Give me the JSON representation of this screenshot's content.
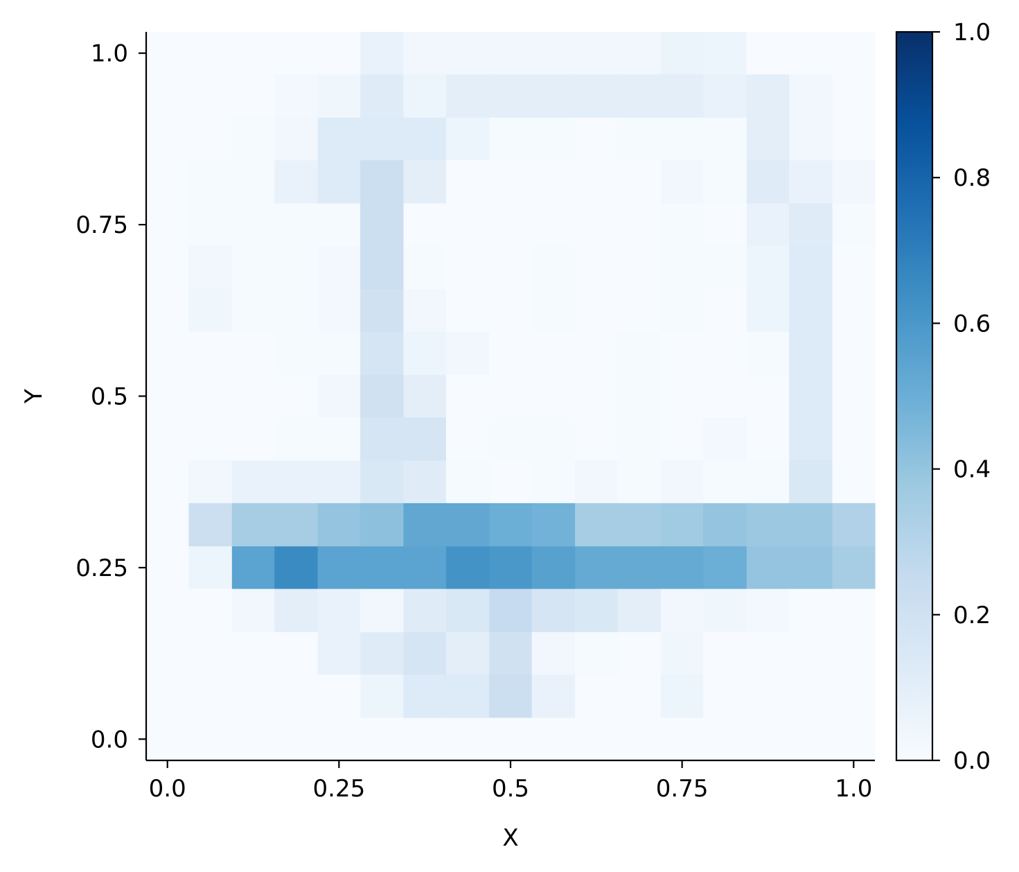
{
  "chart_data": {
    "type": "heatmap",
    "title": "",
    "xlabel": "X",
    "ylabel": "Y",
    "xlim": [
      -0.031,
      1.031
    ],
    "ylim": [
      -0.031,
      1.031
    ],
    "grid": false,
    "colormap": "Blues",
    "colormap_stops": [
      "#f7fbff",
      "#deebf7",
      "#c6dbef",
      "#9ecae1",
      "#6baed6",
      "#4292c6",
      "#2171b5",
      "#08519c",
      "#08306b"
    ],
    "x_ticks": [
      0.0,
      0.25,
      0.5,
      0.75,
      1.0
    ],
    "x_tick_labels": [
      "0.0",
      "0.25",
      "0.5",
      "0.75",
      "1.0"
    ],
    "y_ticks": [
      0.0,
      0.25,
      0.5,
      0.75,
      1.0
    ],
    "y_tick_labels": [
      "0.0",
      "0.25",
      "0.5",
      "0.75",
      "1.0"
    ],
    "x_edges": [
      -0.031,
      0.031,
      0.094,
      0.156,
      0.219,
      0.281,
      0.344,
      0.406,
      0.469,
      0.531,
      0.594,
      0.656,
      0.719,
      0.781,
      0.844,
      0.906,
      0.969,
      1.031
    ],
    "y_edges": [
      -0.031,
      0.031,
      0.094,
      0.156,
      0.219,
      0.281,
      0.344,
      0.406,
      0.469,
      0.531,
      0.594,
      0.656,
      0.719,
      0.781,
      0.844,
      0.906,
      0.969,
      1.031
    ],
    "values_rows_from_top": [
      [
        0.0,
        0.0,
        0.0,
        0.0,
        0.0,
        0.07,
        0.03,
        0.03,
        0.03,
        0.03,
        0.03,
        0.03,
        0.06,
        0.05,
        0.0,
        0.0,
        0.0
      ],
      [
        0.0,
        0.0,
        0.0,
        0.02,
        0.04,
        0.12,
        0.05,
        0.1,
        0.1,
        0.1,
        0.1,
        0.1,
        0.1,
        0.07,
        0.1,
        0.03,
        0.0
      ],
      [
        0.0,
        0.0,
        0.01,
        0.03,
        0.13,
        0.13,
        0.13,
        0.05,
        0.01,
        0.01,
        0.0,
        0.01,
        0.01,
        0.01,
        0.1,
        0.03,
        0.0
      ],
      [
        0.0,
        0.01,
        0.01,
        0.07,
        0.13,
        0.22,
        0.1,
        0.0,
        0.0,
        0.0,
        0.0,
        0.0,
        0.03,
        0.01,
        0.12,
        0.07,
        0.03
      ],
      [
        0.0,
        0.01,
        0.01,
        0.01,
        0.01,
        0.22,
        0.0,
        0.0,
        0.0,
        0.0,
        0.0,
        0.0,
        0.01,
        0.0,
        0.07,
        0.12,
        0.01
      ],
      [
        0.0,
        0.03,
        0.01,
        0.01,
        0.02,
        0.22,
        0.01,
        0.0,
        0.0,
        0.01,
        0.0,
        0.0,
        0.01,
        0.01,
        0.05,
        0.13,
        0.0
      ],
      [
        0.0,
        0.04,
        0.01,
        0.01,
        0.02,
        0.2,
        0.03,
        0.0,
        0.0,
        0.01,
        0.0,
        0.0,
        0.01,
        0.0,
        0.05,
        0.13,
        0.0
      ],
      [
        0.0,
        0.0,
        0.0,
        0.01,
        0.01,
        0.17,
        0.05,
        0.03,
        0.0,
        0.0,
        0.0,
        0.01,
        0.0,
        0.0,
        0.01,
        0.13,
        0.0
      ],
      [
        0.0,
        0.0,
        0.0,
        0.0,
        0.03,
        0.2,
        0.1,
        0.0,
        0.0,
        0.0,
        0.0,
        0.01,
        0.0,
        0.0,
        0.0,
        0.13,
        0.0
      ],
      [
        0.0,
        0.0,
        0.0,
        0.01,
        0.01,
        0.17,
        0.17,
        0.0,
        0.01,
        0.01,
        0.0,
        0.01,
        0.0,
        0.02,
        0.0,
        0.13,
        0.0
      ],
      [
        0.0,
        0.03,
        0.07,
        0.07,
        0.07,
        0.15,
        0.12,
        0.01,
        0.0,
        0.01,
        0.03,
        0.01,
        0.03,
        0.01,
        0.01,
        0.15,
        0.0
      ],
      [
        0.0,
        0.22,
        0.35,
        0.35,
        0.4,
        0.42,
        0.53,
        0.53,
        0.5,
        0.48,
        0.35,
        0.35,
        0.37,
        0.4,
        0.38,
        0.38,
        0.32
      ],
      [
        0.0,
        0.05,
        0.55,
        0.65,
        0.55,
        0.55,
        0.55,
        0.62,
        0.6,
        0.56,
        0.52,
        0.52,
        0.52,
        0.5,
        0.4,
        0.4,
        0.35
      ],
      [
        0.0,
        0.0,
        0.03,
        0.1,
        0.07,
        0.03,
        0.12,
        0.15,
        0.25,
        0.17,
        0.15,
        0.1,
        0.03,
        0.04,
        0.02,
        0.0,
        0.0
      ],
      [
        0.0,
        0.0,
        0.0,
        0.0,
        0.07,
        0.12,
        0.17,
        0.1,
        0.2,
        0.03,
        0.01,
        0.0,
        0.04,
        0.0,
        0.0,
        0.0,
        0.0
      ],
      [
        0.0,
        0.0,
        0.0,
        0.0,
        0.0,
        0.05,
        0.13,
        0.13,
        0.22,
        0.07,
        0.0,
        0.0,
        0.05,
        0.0,
        0.0,
        0.0,
        0.0
      ],
      [
        0.0,
        0.0,
        0.0,
        0.0,
        0.0,
        0.0,
        0.0,
        0.0,
        0.0,
        0.0,
        0.0,
        0.0,
        0.0,
        0.0,
        0.0,
        0.0,
        0.0
      ]
    ],
    "colorbar": {
      "range": [
        0.0,
        1.0
      ],
      "ticks": [
        0.0,
        0.2,
        0.4,
        0.6,
        0.8,
        1.0
      ],
      "tick_labels": [
        "0.0",
        "0.2",
        "0.4",
        "0.6",
        "0.8",
        "1.0"
      ]
    }
  }
}
